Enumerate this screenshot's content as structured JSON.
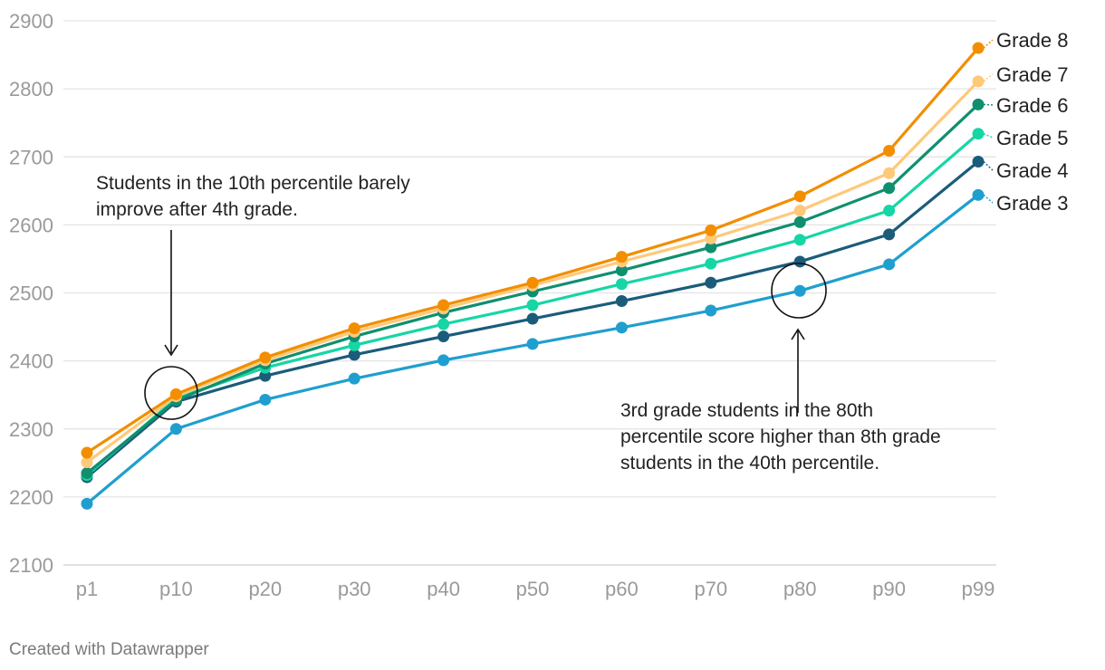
{
  "chart_data": {
    "type": "line",
    "title": "",
    "xlabel": "",
    "ylabel": "",
    "ylim": [
      2100,
      2900
    ],
    "yticks": [
      2100,
      2200,
      2300,
      2400,
      2500,
      2600,
      2700,
      2800,
      2900
    ],
    "grid": true,
    "legend_placement": "right, inline at line ends",
    "categories": [
      "p1",
      "p10",
      "p20",
      "p30",
      "p40",
      "p50",
      "p60",
      "p70",
      "p80",
      "p90",
      "p99"
    ],
    "series": [
      {
        "name": "Grade 3",
        "color": "#1f9fcf",
        "values": [
          2190,
          2300,
          2343,
          2374,
          2401,
          2425,
          2449,
          2474,
          2503,
          2542,
          2644
        ]
      },
      {
        "name": "Grade 4",
        "color": "#1b5c7a",
        "values": [
          2229,
          2340,
          2378,
          2409,
          2436,
          2462,
          2488,
          2515,
          2546,
          2586,
          2693
        ]
      },
      {
        "name": "Grade 5",
        "color": "#16d6a5",
        "values": [
          2232,
          2345,
          2390,
          2423,
          2454,
          2482,
          2513,
          2543,
          2578,
          2621,
          2734
        ]
      },
      {
        "name": "Grade 6",
        "color": "#0f8f6e",
        "values": [
          2235,
          2342,
          2396,
          2436,
          2471,
          2502,
          2533,
          2567,
          2604,
          2654,
          2777
        ]
      },
      {
        "name": "Grade 7",
        "color": "#ffc97a",
        "values": [
          2251,
          2348,
          2401,
          2443,
          2477,
          2511,
          2546,
          2580,
          2621,
          2676,
          2811
        ]
      },
      {
        "name": "Grade 8",
        "color": "#f28e00",
        "values": [
          2265,
          2351,
          2405,
          2448,
          2482,
          2515,
          2553,
          2592,
          2642,
          2709,
          2860
        ]
      }
    ],
    "annotations": [
      {
        "lines": [
          "Students in the 10th percentile barely",
          "improve after 4th grade."
        ],
        "target": "p10"
      },
      {
        "lines": [
          "3rd grade students in the 80th",
          "percentile score higher than 8th grade",
          "students in the 40th percentile."
        ],
        "target": "p80"
      }
    ]
  },
  "footer": "Created with Datawrapper"
}
